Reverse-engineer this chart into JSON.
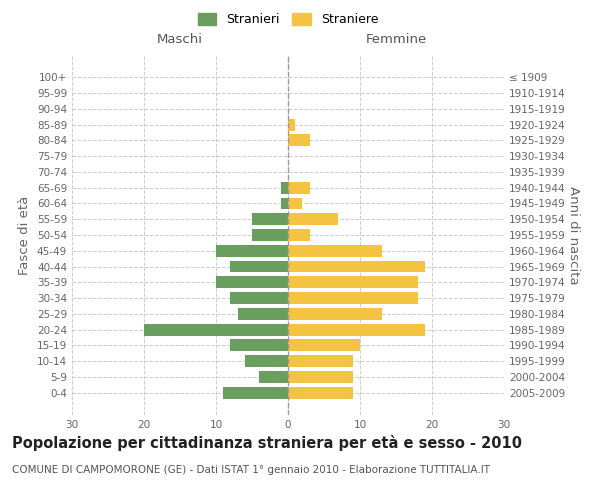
{
  "age_groups": [
    "100+",
    "95-99",
    "90-94",
    "85-89",
    "80-84",
    "75-79",
    "70-74",
    "65-69",
    "60-64",
    "55-59",
    "50-54",
    "45-49",
    "40-44",
    "35-39",
    "30-34",
    "25-29",
    "20-24",
    "15-19",
    "10-14",
    "5-9",
    "0-4"
  ],
  "birth_years": [
    "≤ 1909",
    "1910-1914",
    "1915-1919",
    "1920-1924",
    "1925-1929",
    "1930-1934",
    "1935-1939",
    "1940-1944",
    "1945-1949",
    "1950-1954",
    "1955-1959",
    "1960-1964",
    "1965-1969",
    "1970-1974",
    "1975-1979",
    "1980-1984",
    "1985-1989",
    "1990-1994",
    "1995-1999",
    "2000-2004",
    "2005-2009"
  ],
  "males": [
    0,
    0,
    0,
    0,
    0,
    0,
    0,
    1,
    1,
    5,
    5,
    10,
    8,
    10,
    8,
    7,
    20,
    8,
    6,
    4,
    9
  ],
  "females": [
    0,
    0,
    0,
    1,
    3,
    0,
    0,
    3,
    2,
    7,
    3,
    13,
    19,
    18,
    18,
    13,
    19,
    10,
    9,
    9,
    9
  ],
  "male_color": "#6a9e5f",
  "female_color": "#f5c342",
  "background_color": "#ffffff",
  "grid_color": "#cccccc",
  "title": "Popolazione per cittadinanza straniera per età e sesso - 2010",
  "subtitle": "COMUNE DI CAMPOMORONE (GE) - Dati ISTAT 1° gennaio 2010 - Elaborazione TUTTITALIA.IT",
  "xlabel_left": "Maschi",
  "xlabel_right": "Femmine",
  "ylabel_left": "Fasce di età",
  "ylabel_right": "Anni di nascita",
  "legend_male": "Stranieri",
  "legend_female": "Straniere",
  "xlim": 30,
  "title_fontsize": 10.5,
  "subtitle_fontsize": 7.5,
  "tick_fontsize": 7.5,
  "label_fontsize": 9.5
}
